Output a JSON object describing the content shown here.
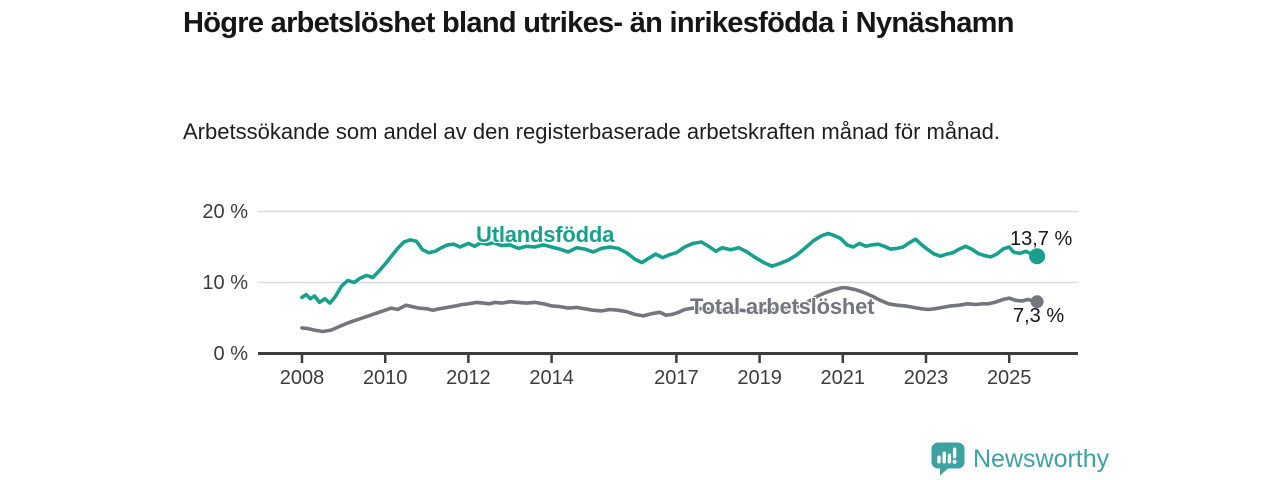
{
  "header": {
    "title": "Högre arbetslöshet bland utrikes- än inrikesfödda i Nynäshamn",
    "subtitle": "Arbetssökande som andel av den registerbaserade arbetskraften månad för månad."
  },
  "chart_data": {
    "type": "line",
    "title": "Högre arbetslöshet bland utrikes- än inrikesfödda i Nynäshamn",
    "xlabel": "",
    "ylabel": "",
    "ylim": [
      0,
      20
    ],
    "xlim": [
      2008,
      2026.6
    ],
    "grid": "horizontal",
    "legend_position": "inline-on-lines",
    "y_ticks": [
      {
        "value": 0,
        "label": "0 %"
      },
      {
        "value": 10,
        "label": "10 %"
      },
      {
        "value": 20,
        "label": "20 %"
      }
    ],
    "x_ticks": [
      {
        "value": 2008,
        "label": "2008"
      },
      {
        "value": 2010,
        "label": "2010"
      },
      {
        "value": 2012,
        "label": "2012"
      },
      {
        "value": 2014,
        "label": "2014"
      },
      {
        "value": 2017,
        "label": "2017"
      },
      {
        "value": 2019,
        "label": "2019"
      },
      {
        "value": 2021,
        "label": "2021"
      },
      {
        "value": 2023,
        "label": "2023"
      },
      {
        "value": 2025,
        "label": "2025"
      }
    ],
    "series": [
      {
        "name": "Utlandsfödda",
        "color": "#17a08e",
        "end_label": "13,7 %",
        "end_value": 13.7,
        "points": [
          [
            2008.0,
            7.9
          ],
          [
            2008.1,
            8.3
          ],
          [
            2008.2,
            7.7
          ],
          [
            2008.3,
            8.1
          ],
          [
            2008.42,
            7.2
          ],
          [
            2008.55,
            7.7
          ],
          [
            2008.67,
            7.1
          ],
          [
            2008.8,
            8.0
          ],
          [
            2008.95,
            9.5
          ],
          [
            2009.1,
            10.3
          ],
          [
            2009.25,
            10.0
          ],
          [
            2009.4,
            10.6
          ],
          [
            2009.55,
            11.0
          ],
          [
            2009.7,
            10.7
          ],
          [
            2009.85,
            11.6
          ],
          [
            2010.0,
            12.6
          ],
          [
            2010.15,
            13.7
          ],
          [
            2010.3,
            14.8
          ],
          [
            2010.45,
            15.7
          ],
          [
            2010.6,
            16.0
          ],
          [
            2010.75,
            15.8
          ],
          [
            2010.9,
            14.6
          ],
          [
            2011.05,
            14.2
          ],
          [
            2011.2,
            14.4
          ],
          [
            2011.35,
            14.9
          ],
          [
            2011.5,
            15.3
          ],
          [
            2011.65,
            15.4
          ],
          [
            2011.8,
            15.0
          ],
          [
            2012.0,
            15.5
          ],
          [
            2012.15,
            15.1
          ],
          [
            2012.3,
            15.6
          ],
          [
            2012.45,
            15.4
          ],
          [
            2012.6,
            15.6
          ],
          [
            2012.8,
            15.2
          ],
          [
            2013.0,
            15.3
          ],
          [
            2013.2,
            14.8
          ],
          [
            2013.4,
            15.1
          ],
          [
            2013.6,
            15.0
          ],
          [
            2013.8,
            15.3
          ],
          [
            2014.0,
            15.0
          ],
          [
            2014.2,
            14.7
          ],
          [
            2014.4,
            14.3
          ],
          [
            2014.6,
            14.9
          ],
          [
            2014.8,
            14.7
          ],
          [
            2015.0,
            14.3
          ],
          [
            2015.2,
            14.8
          ],
          [
            2015.4,
            15.0
          ],
          [
            2015.6,
            14.8
          ],
          [
            2015.8,
            14.2
          ],
          [
            2016.0,
            13.3
          ],
          [
            2016.17,
            12.8
          ],
          [
            2016.33,
            13.4
          ],
          [
            2016.5,
            14.0
          ],
          [
            2016.67,
            13.5
          ],
          [
            2016.83,
            13.9
          ],
          [
            2017.0,
            14.2
          ],
          [
            2017.2,
            15.0
          ],
          [
            2017.4,
            15.5
          ],
          [
            2017.6,
            15.7
          ],
          [
            2017.8,
            15.0
          ],
          [
            2017.95,
            14.4
          ],
          [
            2018.1,
            14.9
          ],
          [
            2018.3,
            14.6
          ],
          [
            2018.5,
            14.9
          ],
          [
            2018.7,
            14.3
          ],
          [
            2018.9,
            13.5
          ],
          [
            2019.1,
            12.8
          ],
          [
            2019.3,
            12.3
          ],
          [
            2019.5,
            12.7
          ],
          [
            2019.7,
            13.2
          ],
          [
            2019.9,
            13.9
          ],
          [
            2020.1,
            14.9
          ],
          [
            2020.3,
            15.9
          ],
          [
            2020.5,
            16.6
          ],
          [
            2020.65,
            16.9
          ],
          [
            2020.8,
            16.6
          ],
          [
            2020.95,
            16.2
          ],
          [
            2021.1,
            15.3
          ],
          [
            2021.25,
            15.0
          ],
          [
            2021.4,
            15.5
          ],
          [
            2021.55,
            15.1
          ],
          [
            2021.7,
            15.3
          ],
          [
            2021.85,
            15.4
          ],
          [
            2022.0,
            15.1
          ],
          [
            2022.15,
            14.7
          ],
          [
            2022.3,
            14.8
          ],
          [
            2022.45,
            15.0
          ],
          [
            2022.6,
            15.6
          ],
          [
            2022.75,
            16.1
          ],
          [
            2022.9,
            15.3
          ],
          [
            2023.05,
            14.6
          ],
          [
            2023.2,
            14.0
          ],
          [
            2023.35,
            13.7
          ],
          [
            2023.5,
            14.0
          ],
          [
            2023.65,
            14.2
          ],
          [
            2023.8,
            14.7
          ],
          [
            2023.95,
            15.1
          ],
          [
            2024.1,
            14.7
          ],
          [
            2024.25,
            14.1
          ],
          [
            2024.4,
            13.8
          ],
          [
            2024.55,
            13.6
          ],
          [
            2024.7,
            14.0
          ],
          [
            2024.85,
            14.7
          ],
          [
            2025.0,
            15.0
          ],
          [
            2025.1,
            14.3
          ],
          [
            2025.25,
            14.1
          ],
          [
            2025.4,
            14.4
          ],
          [
            2025.55,
            14.0
          ],
          [
            2025.67,
            13.7
          ]
        ]
      },
      {
        "name": "Total arbetslöshet",
        "color": "#75757d",
        "end_label": "7,3 %",
        "end_value": 7.3,
        "points": [
          [
            2008.0,
            3.6
          ],
          [
            2008.15,
            3.5
          ],
          [
            2008.3,
            3.3
          ],
          [
            2008.5,
            3.1
          ],
          [
            2008.7,
            3.3
          ],
          [
            2008.9,
            3.8
          ],
          [
            2009.1,
            4.3
          ],
          [
            2009.3,
            4.7
          ],
          [
            2009.5,
            5.1
          ],
          [
            2009.65,
            5.4
          ],
          [
            2009.8,
            5.7
          ],
          [
            2010.0,
            6.1
          ],
          [
            2010.15,
            6.4
          ],
          [
            2010.3,
            6.2
          ],
          [
            2010.5,
            6.8
          ],
          [
            2010.65,
            6.6
          ],
          [
            2010.8,
            6.4
          ],
          [
            2011.0,
            6.3
          ],
          [
            2011.15,
            6.1
          ],
          [
            2011.3,
            6.3
          ],
          [
            2011.5,
            6.5
          ],
          [
            2011.7,
            6.7
          ],
          [
            2011.85,
            6.9
          ],
          [
            2012.0,
            7.0
          ],
          [
            2012.2,
            7.2
          ],
          [
            2012.35,
            7.1
          ],
          [
            2012.5,
            7.0
          ],
          [
            2012.65,
            7.2
          ],
          [
            2012.8,
            7.1
          ],
          [
            2013.0,
            7.3
          ],
          [
            2013.2,
            7.2
          ],
          [
            2013.4,
            7.1
          ],
          [
            2013.6,
            7.2
          ],
          [
            2013.8,
            7.0
          ],
          [
            2014.0,
            6.7
          ],
          [
            2014.2,
            6.6
          ],
          [
            2014.4,
            6.4
          ],
          [
            2014.6,
            6.5
          ],
          [
            2014.8,
            6.3
          ],
          [
            2015.0,
            6.1
          ],
          [
            2015.2,
            6.0
          ],
          [
            2015.4,
            6.2
          ],
          [
            2015.6,
            6.1
          ],
          [
            2015.8,
            5.9
          ],
          [
            2016.0,
            5.5
          ],
          [
            2016.2,
            5.3
          ],
          [
            2016.4,
            5.6
          ],
          [
            2016.6,
            5.8
          ],
          [
            2016.75,
            5.4
          ],
          [
            2016.9,
            5.5
          ],
          [
            2017.05,
            5.8
          ],
          [
            2017.2,
            6.2
          ],
          [
            2017.4,
            6.4
          ],
          [
            2017.6,
            6.3
          ],
          [
            2017.8,
            6.2
          ],
          [
            2018.0,
            6.1
          ],
          [
            2018.25,
            6.0
          ],
          [
            2018.5,
            6.1
          ],
          [
            2018.75,
            6.0
          ],
          [
            2019.0,
            6.0
          ],
          [
            2019.25,
            6.1
          ],
          [
            2019.5,
            6.2
          ],
          [
            2019.75,
            6.4
          ],
          [
            2020.0,
            6.7
          ],
          [
            2020.2,
            7.4
          ],
          [
            2020.4,
            8.1
          ],
          [
            2020.6,
            8.6
          ],
          [
            2020.8,
            9.0
          ],
          [
            2021.0,
            9.3
          ],
          [
            2021.15,
            9.2
          ],
          [
            2021.3,
            9.0
          ],
          [
            2021.5,
            8.6
          ],
          [
            2021.7,
            8.1
          ],
          [
            2021.9,
            7.5
          ],
          [
            2022.1,
            7.0
          ],
          [
            2022.3,
            6.8
          ],
          [
            2022.5,
            6.7
          ],
          [
            2022.7,
            6.5
          ],
          [
            2022.9,
            6.3
          ],
          [
            2023.05,
            6.2
          ],
          [
            2023.2,
            6.3
          ],
          [
            2023.4,
            6.5
          ],
          [
            2023.6,
            6.7
          ],
          [
            2023.8,
            6.8
          ],
          [
            2024.0,
            7.0
          ],
          [
            2024.2,
            6.9
          ],
          [
            2024.35,
            7.0
          ],
          [
            2024.5,
            7.0
          ],
          [
            2024.65,
            7.2
          ],
          [
            2024.85,
            7.6
          ],
          [
            2025.0,
            7.8
          ],
          [
            2025.15,
            7.5
          ],
          [
            2025.3,
            7.4
          ],
          [
            2025.45,
            7.6
          ],
          [
            2025.67,
            7.3
          ]
        ]
      }
    ]
  },
  "footer": {
    "brand": "Newsworthy",
    "brand_color": "#3da1a1"
  }
}
